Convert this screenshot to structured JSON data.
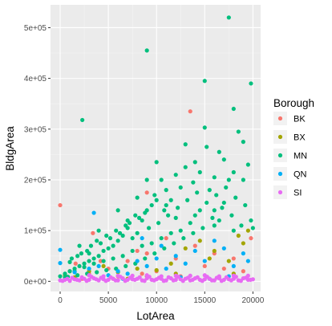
{
  "chart_data": {
    "type": "scatter",
    "xlabel": "LotArea",
    "ylabel": "BldgArea",
    "xlim": [
      -1000,
      20800
    ],
    "ylim": [
      -20000,
      545000
    ],
    "xticks": [
      0,
      5000,
      10000,
      15000,
      20000
    ],
    "xtick_labels": [
      "0",
      "5000",
      "10000",
      "15000",
      "20000"
    ],
    "yticks": [
      0,
      100000,
      200000,
      300000,
      400000,
      500000
    ],
    "ytick_labels": [
      "0e+00",
      "1e+05",
      "2e+05",
      "3e+05",
      "4e+05",
      "5e+05"
    ],
    "grid": true,
    "legend": {
      "title": "Borough",
      "position": "right",
      "entries": [
        "BK",
        "BX",
        "MN",
        "QN",
        "SI"
      ]
    },
    "series": [
      {
        "name": "BK",
        "color": "#F8766D",
        "points": [
          [
            0,
            150000
          ],
          [
            1000,
            20000
          ],
          [
            1600,
            35000
          ],
          [
            2300,
            5000
          ],
          [
            3000,
            15000
          ],
          [
            3400,
            95000
          ],
          [
            4200,
            40000
          ],
          [
            5000,
            25000
          ],
          [
            6000,
            10000
          ],
          [
            7000,
            40000
          ],
          [
            8000,
            60000
          ],
          [
            9000,
            55000
          ],
          [
            9000,
            175000
          ],
          [
            10000,
            20000
          ],
          [
            11000,
            85000
          ],
          [
            12000,
            45000
          ],
          [
            13500,
            335000
          ],
          [
            14000,
            70000
          ],
          [
            15000,
            30000
          ],
          [
            16000,
            55000
          ],
          [
            17000,
            25000
          ],
          [
            18000,
            45000
          ],
          [
            19000,
            20000
          ],
          [
            19800,
            85000
          ],
          [
            5500,
            5000
          ],
          [
            8500,
            15000
          ],
          [
            12500,
            10000
          ],
          [
            16500,
            8000
          ]
        ]
      },
      {
        "name": "BX",
        "color": "#A3A500",
        "points": [
          [
            500,
            12000
          ],
          [
            1500,
            8000
          ],
          [
            3000,
            20000
          ],
          [
            4500,
            30000
          ],
          [
            6000,
            18000
          ],
          [
            8000,
            25000
          ],
          [
            10000,
            22000
          ],
          [
            11500,
            35000
          ],
          [
            13000,
            65000
          ],
          [
            14500,
            80000
          ],
          [
            16000,
            60000
          ],
          [
            17500,
            40000
          ],
          [
            18500,
            90000
          ],
          [
            19500,
            100000
          ],
          [
            19000,
            75000
          ],
          [
            15500,
            45000
          ],
          [
            12000,
            15000
          ],
          [
            9000,
            10000
          ],
          [
            7000,
            5000
          ],
          [
            18000,
            15000
          ]
        ]
      },
      {
        "name": "MN",
        "color": "#00BF7D",
        "points": [
          [
            2300,
            318000
          ],
          [
            9000,
            455000
          ],
          [
            15000,
            395000
          ],
          [
            17500,
            520000
          ],
          [
            19800,
            390000
          ],
          [
            15000,
            303000
          ],
          [
            18500,
            295000
          ],
          [
            17000,
            240000
          ],
          [
            16000,
            205000
          ],
          [
            17500,
            200000
          ],
          [
            15200,
            265000
          ],
          [
            19000,
            275000
          ],
          [
            19500,
            230000
          ],
          [
            14000,
            235000
          ],
          [
            13000,
            225000
          ],
          [
            12000,
            210000
          ],
          [
            11000,
            180000
          ],
          [
            10500,
            200000
          ],
          [
            10000,
            235000
          ],
          [
            9500,
            150000
          ],
          [
            9000,
            140000
          ],
          [
            8500,
            120000
          ],
          [
            8000,
            95000
          ],
          [
            7500,
            85000
          ],
          [
            7000,
            105000
          ],
          [
            6500,
            90000
          ],
          [
            6000,
            80000
          ],
          [
            5500,
            70000
          ],
          [
            5000,
            65000
          ],
          [
            4500,
            60000
          ],
          [
            4000,
            50000
          ],
          [
            3500,
            45000
          ],
          [
            3000,
            40000
          ],
          [
            2500,
            35000
          ],
          [
            2000,
            30000
          ],
          [
            1500,
            25000
          ],
          [
            1000,
            20000
          ],
          [
            500,
            15000
          ],
          [
            0,
            10000
          ],
          [
            1200,
            45000
          ],
          [
            2200,
            55000
          ],
          [
            3200,
            70000
          ],
          [
            4200,
            75000
          ],
          [
            5200,
            85000
          ],
          [
            6200,
            95000
          ],
          [
            7200,
            115000
          ],
          [
            8200,
            125000
          ],
          [
            9200,
            105000
          ],
          [
            10200,
            115000
          ],
          [
            11200,
            130000
          ],
          [
            12200,
            145000
          ],
          [
            13200,
            160000
          ],
          [
            14200,
            175000
          ],
          [
            15200,
            155000
          ],
          [
            16200,
            170000
          ],
          [
            17200,
            185000
          ],
          [
            18200,
            165000
          ],
          [
            19200,
            150000
          ],
          [
            19800,
            120000
          ],
          [
            18800,
            110000
          ],
          [
            17800,
            130000
          ],
          [
            16800,
            145000
          ],
          [
            15800,
            125000
          ],
          [
            14800,
            105000
          ],
          [
            13800,
            95000
          ],
          [
            12800,
            85000
          ],
          [
            11800,
            75000
          ],
          [
            10800,
            65000
          ],
          [
            9800,
            55000
          ],
          [
            8800,
            45000
          ],
          [
            7800,
            35000
          ],
          [
            6800,
            30000
          ],
          [
            5800,
            25000
          ],
          [
            4800,
            22000
          ],
          [
            3800,
            18000
          ],
          [
            2800,
            15000
          ],
          [
            1800,
            12000
          ],
          [
            800,
            9000
          ],
          [
            14500,
            215000
          ],
          [
            16500,
            255000
          ],
          [
            13800,
            195000
          ],
          [
            12500,
            185000
          ],
          [
            11500,
            160000
          ],
          [
            10800,
            140000
          ],
          [
            9800,
            170000
          ],
          [
            8800,
            135000
          ],
          [
            7800,
            130000
          ],
          [
            6800,
            110000
          ],
          [
            5800,
            100000
          ],
          [
            4800,
            90000
          ],
          [
            3800,
            80000
          ],
          [
            2800,
            60000
          ],
          [
            1800,
            50000
          ],
          [
            19000,
            200000
          ],
          [
            18000,
            215000
          ],
          [
            17000,
            155000
          ],
          [
            16000,
            140000
          ],
          [
            15500,
            180000
          ],
          [
            14500,
            140000
          ],
          [
            13500,
            115000
          ],
          [
            12500,
            100000
          ],
          [
            11500,
            95000
          ],
          [
            10500,
            85000
          ],
          [
            9500,
            75000
          ],
          [
            8500,
            70000
          ],
          [
            7500,
            60000
          ],
          [
            6500,
            50000
          ],
          [
            5500,
            45000
          ],
          [
            4500,
            40000
          ],
          [
            3500,
            35000
          ],
          [
            2500,
            28000
          ],
          [
            1500,
            20000
          ],
          [
            500,
            8000
          ],
          [
            2000,
            70000
          ],
          [
            4000,
            100000
          ],
          [
            6000,
            140000
          ],
          [
            8000,
            165000
          ],
          [
            10000,
            160000
          ],
          [
            12000,
            125000
          ],
          [
            14000,
            130000
          ],
          [
            16000,
            110000
          ],
          [
            18000,
            100000
          ],
          [
            20000,
            105000
          ],
          [
            13000,
            270000
          ],
          [
            18000,
            340000
          ],
          [
            16500,
            120000
          ],
          [
            11000,
            150000
          ],
          [
            9000,
            200000
          ],
          [
            7000,
            120000
          ],
          [
            3000,
            55000
          ],
          [
            1000,
            38000
          ]
        ]
      },
      {
        "name": "QN",
        "color": "#00B0F6",
        "points": [
          [
            0,
            62000
          ],
          [
            0,
            36000
          ],
          [
            3500,
            135000
          ],
          [
            1500,
            18000
          ],
          [
            3000,
            25000
          ],
          [
            4000,
            30000
          ],
          [
            5000,
            12000
          ],
          [
            6000,
            20000
          ],
          [
            7000,
            15000
          ],
          [
            8000,
            40000
          ],
          [
            9000,
            30000
          ],
          [
            10000,
            45000
          ],
          [
            11000,
            25000
          ],
          [
            12000,
            50000
          ],
          [
            13000,
            35000
          ],
          [
            14000,
            60000
          ],
          [
            15000,
            40000
          ],
          [
            16000,
            80000
          ],
          [
            17000,
            65000
          ],
          [
            18000,
            30000
          ],
          [
            19000,
            55000
          ],
          [
            19500,
            40000
          ],
          [
            8500,
            85000
          ],
          [
            10500,
            70000
          ],
          [
            6500,
            5000
          ],
          [
            12500,
            8000
          ],
          [
            15500,
            5000
          ],
          [
            17500,
            10000
          ]
        ]
      },
      {
        "name": "SI",
        "color": "#E76BF3",
        "points": [
          [
            0,
            2000
          ],
          [
            500,
            3000
          ],
          [
            1000,
            1000
          ],
          [
            1500,
            4000
          ],
          [
            2000,
            2000
          ],
          [
            2500,
            5000
          ],
          [
            3000,
            3000
          ],
          [
            3500,
            6000
          ],
          [
            4000,
            2000
          ],
          [
            4500,
            4000
          ],
          [
            5000,
            3000
          ],
          [
            5500,
            5000
          ],
          [
            6000,
            2000
          ],
          [
            6500,
            6000
          ],
          [
            7000,
            3000
          ],
          [
            7500,
            4000
          ],
          [
            8000,
            5000
          ],
          [
            8500,
            2000
          ],
          [
            9000,
            6000
          ],
          [
            9500,
            3000
          ],
          [
            10000,
            4000
          ],
          [
            10500,
            5000
          ],
          [
            11000,
            2000
          ],
          [
            11500,
            6000
          ],
          [
            12000,
            3000
          ],
          [
            12500,
            4000
          ],
          [
            13000,
            5000
          ],
          [
            13500,
            2000
          ],
          [
            14000,
            6000
          ],
          [
            14500,
            3000
          ],
          [
            15000,
            4000
          ],
          [
            15500,
            5000
          ],
          [
            16000,
            2000
          ],
          [
            16500,
            6000
          ],
          [
            17000,
            3000
          ],
          [
            17500,
            4000
          ],
          [
            18000,
            5000
          ],
          [
            18500,
            2000
          ],
          [
            19000,
            6000
          ],
          [
            19500,
            3000
          ],
          [
            20000,
            4000
          ],
          [
            250,
            1000
          ],
          [
            750,
            5000
          ],
          [
            1250,
            7000
          ],
          [
            1750,
            3000
          ],
          [
            2250,
            8000
          ],
          [
            2750,
            1000
          ],
          [
            3250,
            9000
          ],
          [
            3750,
            4000
          ],
          [
            4250,
            7000
          ],
          [
            4750,
            1000
          ],
          [
            5250,
            8000
          ],
          [
            5750,
            2000
          ],
          [
            6250,
            9000
          ],
          [
            6750,
            1000
          ],
          [
            7250,
            7000
          ],
          [
            7750,
            3000
          ],
          [
            8250,
            8000
          ],
          [
            8750,
            1000
          ],
          [
            9250,
            9000
          ],
          [
            9750,
            2000
          ],
          [
            10250,
            7000
          ],
          [
            10750,
            1000
          ],
          [
            11250,
            8000
          ],
          [
            11750,
            2000
          ],
          [
            12250,
            9000
          ],
          [
            12750,
            1000
          ],
          [
            13250,
            7000
          ],
          [
            13750,
            3000
          ],
          [
            14250,
            8000
          ],
          [
            14750,
            1000
          ],
          [
            15250,
            9000
          ],
          [
            15750,
            2000
          ],
          [
            16250,
            7000
          ],
          [
            16750,
            1000
          ],
          [
            17250,
            8000
          ],
          [
            17750,
            2000
          ],
          [
            18250,
            9000
          ],
          [
            18750,
            1000
          ],
          [
            19250,
            7000
          ],
          [
            19750,
            3000
          ],
          [
            3000,
            12000
          ],
          [
            6000,
            11000
          ],
          [
            9000,
            12000
          ],
          [
            12000,
            11000
          ],
          [
            15000,
            12000
          ],
          [
            18000,
            11000
          ],
          [
            4500,
            10000
          ],
          [
            7500,
            11000
          ],
          [
            10500,
            10000
          ],
          [
            13500,
            11000
          ],
          [
            16500,
            10000
          ],
          [
            19500,
            11000
          ]
        ]
      }
    ]
  }
}
